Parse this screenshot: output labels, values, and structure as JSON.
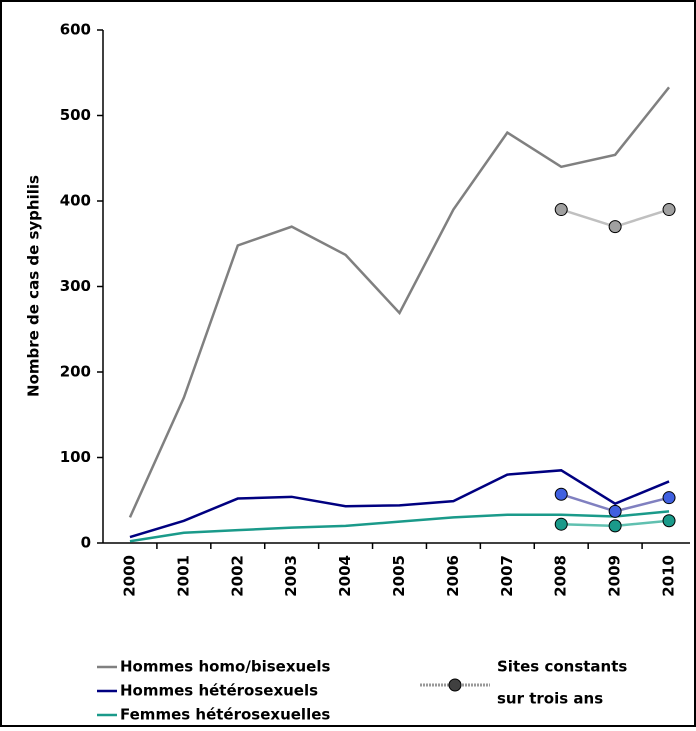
{
  "chart_data": {
    "type": "line",
    "ylabel": "Nombre de cas de syphilis",
    "categories": [
      "2000",
      "2001",
      "2002",
      "2003",
      "2004",
      "2005",
      "2006",
      "2007",
      "2008",
      "2009",
      "2010"
    ],
    "series": [
      {
        "name": "Hommes homo/bisexuels",
        "color": "#808080",
        "values": [
          30,
          170,
          348,
          370,
          337,
          269,
          390,
          480,
          440,
          454,
          533
        ]
      },
      {
        "name": "Hommes hétérosexuels",
        "color": "#000080",
        "values": [
          7,
          26,
          52,
          54,
          43,
          44,
          49,
          80,
          85,
          46,
          72
        ]
      },
      {
        "name": "Femmes hétérosexuelles",
        "color": "#1a9a8a",
        "values": [
          2,
          12,
          15,
          18,
          20,
          25,
          30,
          33,
          33,
          31,
          37
        ]
      }
    ],
    "constant_sites": {
      "label": [
        "Sites constants",
        "sur trois ans"
      ],
      "series": [
        {
          "color": "#c0c0c0",
          "marker_color": "#a0a0a0",
          "values": [
            null,
            null,
            null,
            null,
            null,
            null,
            null,
            null,
            390,
            370,
            390
          ]
        },
        {
          "color": "#8080c0",
          "marker_color": "#4060e0",
          "values": [
            null,
            null,
            null,
            null,
            null,
            null,
            null,
            null,
            57,
            37,
            53
          ]
        },
        {
          "color": "#60c0b0",
          "marker_color": "#1a9a8a",
          "values": [
            null,
            null,
            null,
            null,
            null,
            null,
            null,
            null,
            22,
            20,
            26
          ]
        }
      ]
    },
    "ylim": [
      0,
      600
    ],
    "yticks": [
      0,
      100,
      200,
      300,
      400,
      500,
      600
    ]
  }
}
